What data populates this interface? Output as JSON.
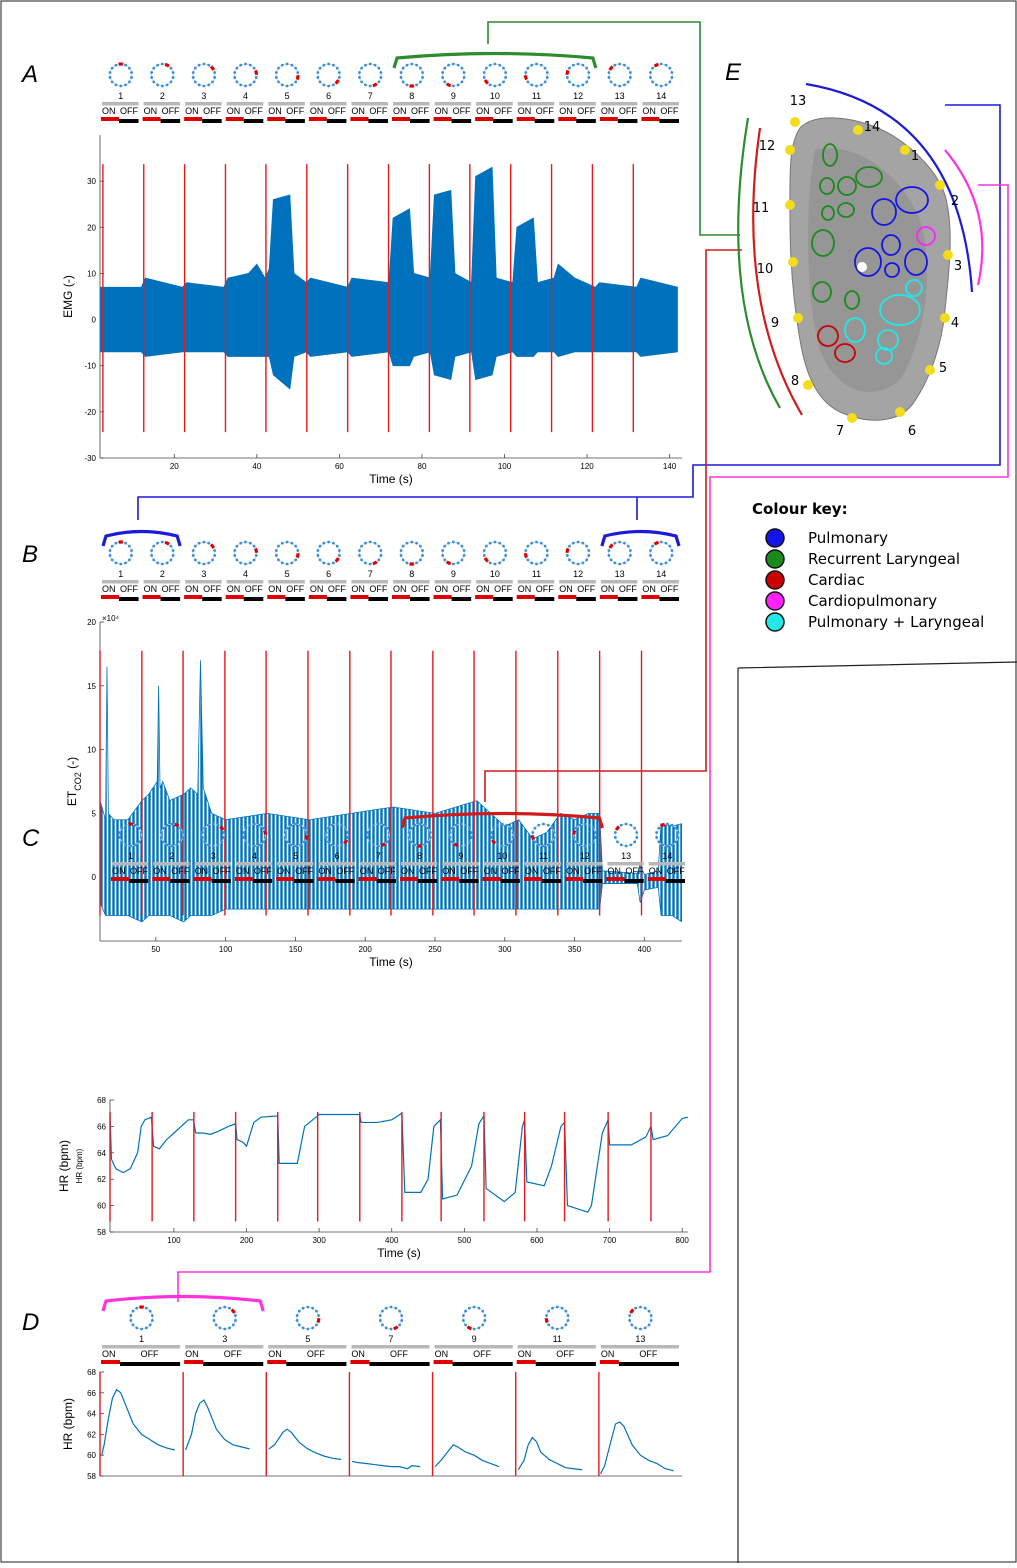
{
  "chart_data": [
    {
      "type": "area",
      "panel": "A",
      "electrodes": [
        "1",
        "2",
        "3",
        "4",
        "5",
        "6",
        "7",
        "8",
        "9",
        "10",
        "11",
        "12",
        "13",
        "14"
      ],
      "on_label": "ON",
      "off_label": "OFF",
      "stim_color": "#e41a1c",
      "stim_onsets": [
        2.7,
        12.6,
        22.5,
        32.4,
        42.2,
        52.1,
        62,
        71.9,
        81.8,
        91.6,
        101.5,
        111.4,
        121.3,
        131.2
      ],
      "x": [
        2,
        12,
        13,
        22,
        23,
        32,
        33,
        38,
        40,
        42,
        43,
        44,
        48,
        49,
        52,
        53,
        62,
        63,
        72,
        73,
        77,
        78,
        82,
        83,
        87,
        88,
        92,
        93,
        97,
        98,
        102,
        103,
        107,
        108,
        112,
        113,
        117,
        122,
        123,
        132,
        133,
        142
      ],
      "series": [
        {
          "color": "#0072bd",
          "values": [
            7,
            7,
            9,
            7,
            8,
            7,
            9,
            10,
            12,
            9,
            11,
            26,
            27,
            10,
            8,
            9,
            7,
            9,
            8,
            22,
            24,
            10,
            9,
            27,
            28,
            10,
            8,
            31,
            33,
            9,
            8,
            20,
            22,
            8,
            9,
            12,
            9,
            7,
            8,
            7,
            9,
            7
          ]
        },
        {
          "color": "#0072bd",
          "values": [
            -7,
            -7,
            -8,
            -7,
            -7,
            -7,
            -8,
            -8,
            -8,
            -8,
            -8,
            -12,
            -15,
            -8,
            -7,
            -8,
            -7,
            -8,
            -7,
            -10,
            -10,
            -8,
            -7,
            -12,
            -13,
            -8,
            -7,
            -13,
            -12,
            -8,
            -7,
            -8,
            -8,
            -7,
            -7,
            -8,
            -7,
            -7,
            -7,
            -7,
            -8,
            -7
          ]
        }
      ],
      "xlim": [
        2,
        143
      ],
      "ylim": [
        -30,
        40
      ],
      "xticks": [
        20,
        40,
        60,
        80,
        100,
        120,
        140
      ],
      "yticks": [
        -30,
        -20,
        -10,
        0,
        10,
        20,
        30
      ],
      "xlabel": "Time (s)",
      "ylabel": "EMG (-)"
    },
    {
      "type": "area",
      "panel": "B",
      "electrodes": [
        "1",
        "2",
        "3",
        "4",
        "5",
        "6",
        "7",
        "8",
        "9",
        "10",
        "11",
        "12",
        "13",
        "14"
      ],
      "on_label": "ON",
      "off_label": "OFF",
      "stim_color": "#e41a1c",
      "stim_onsets": [
        10,
        40,
        69.5,
        99.5,
        129,
        159,
        189,
        218.5,
        248.5,
        278,
        308,
        338,
        368,
        398
      ],
      "x": [
        10,
        14,
        15,
        16,
        20,
        30,
        40,
        45,
        51,
        52,
        53,
        55,
        60,
        70,
        75,
        80,
        82,
        84,
        90,
        100,
        130,
        160,
        190,
        220,
        250,
        280,
        300,
        310,
        320,
        330,
        340,
        350,
        360,
        368,
        370,
        395,
        397,
        400,
        410,
        412,
        420,
        427
      ],
      "series": [
        {
          "color": "#0072bd",
          "values": [
            6,
            4.5,
            16.5,
            5,
            4.5,
            4.5,
            6,
            6.5,
            7.5,
            15,
            7,
            7.5,
            6,
            6.5,
            7,
            6.5,
            17,
            7,
            5,
            4.5,
            5,
            4.5,
            5,
            5.5,
            5,
            6,
            4,
            4.5,
            3,
            3.5,
            5,
            4.5,
            5,
            5,
            0.5,
            0.3,
            1,
            0.2,
            0.5,
            4.2,
            4,
            4.2
          ]
        },
        {
          "color": "#0072bd",
          "values": [
            -2,
            -3,
            -3,
            -3,
            -3,
            -3,
            -3.5,
            -3,
            -3,
            -3,
            -3,
            -3,
            -3,
            -3.5,
            -3,
            -3,
            -3,
            -3,
            -3,
            -2.5,
            -2.5,
            -2.5,
            -2.5,
            -2.5,
            -2.5,
            -2.5,
            -2.5,
            -2.5,
            -2.5,
            -2.5,
            -2.5,
            -2.5,
            -2.5,
            -2.5,
            -0.5,
            -0.5,
            -2,
            -1,
            -0.8,
            -3,
            -3,
            -3.5
          ]
        }
      ],
      "xlim": [
        10,
        427
      ],
      "ylim": [
        -5,
        20
      ],
      "xticks": [
        50,
        100,
        150,
        200,
        250,
        300,
        350,
        400
      ],
      "yticks": [
        0,
        5,
        10,
        15,
        20
      ],
      "y_scale_label": "×10⁴",
      "xlabel": "Time (s)",
      "ylabel": "ET",
      "ylabel_sub": "CO2",
      "ylabel_suffix": " (-)"
    },
    {
      "type": "line",
      "panel": "C",
      "electrodes": [
        "1",
        "2",
        "3",
        "4",
        "5",
        "6",
        "7",
        "8",
        "9",
        "10",
        "11",
        "12",
        "13",
        "14"
      ],
      "on_label": "ON",
      "off_label": "OFF",
      "stim_color": "#e41a1c",
      "stim_onsets": [
        12,
        70,
        127.5,
        185,
        243,
        298,
        356,
        414,
        468,
        527,
        583,
        638,
        698,
        757
      ],
      "x": [
        12,
        14,
        20,
        30,
        40,
        50,
        55,
        60,
        69,
        72,
        80,
        90,
        100,
        110,
        120,
        127,
        130,
        140,
        150,
        160,
        175,
        185,
        187,
        195,
        200,
        210,
        220,
        243,
        245,
        270,
        280,
        298,
        300,
        356,
        358,
        380,
        400,
        414,
        418,
        440,
        450,
        458,
        467,
        470,
        490,
        510,
        520,
        527,
        530,
        555,
        570,
        580,
        583,
        586,
        610,
        620,
        633,
        638,
        642,
        670,
        675,
        690,
        698,
        700,
        730,
        750,
        757,
        760,
        780,
        800,
        808
      ],
      "series": [
        {
          "color": "#0072bd",
          "values": [
            67,
            63.5,
            62.8,
            62.5,
            62.8,
            64,
            66,
            66.5,
            66.7,
            64.5,
            64.3,
            65,
            65.5,
            66,
            66.5,
            66.5,
            65.5,
            65.5,
            65.4,
            65.6,
            66,
            66.2,
            65,
            64.8,
            64.5,
            66.3,
            66.7,
            66.8,
            63.2,
            63.2,
            66,
            66.8,
            66.9,
            66.9,
            66.3,
            66.3,
            66.5,
            67,
            61,
            61,
            62,
            66,
            66.5,
            60.5,
            60.8,
            63,
            66.2,
            66.8,
            61.3,
            60.3,
            61,
            66,
            66.5,
            61.8,
            61.5,
            63,
            66,
            66.3,
            60,
            59.5,
            60,
            65.5,
            66.5,
            64.6,
            64.6,
            65.2,
            66,
            65,
            65.3,
            66.6,
            66.7
          ]
        }
      ],
      "xlim": [
        12,
        808
      ],
      "ylim": [
        58,
        68
      ],
      "xticks": [
        100,
        200,
        300,
        400,
        500,
        600,
        700,
        800
      ],
      "yticks": [
        58,
        60,
        62,
        64,
        66,
        68
      ],
      "xlabel": "Time (s)",
      "ylabel": "HR (bpm)"
    },
    {
      "type": "line",
      "panel": "D",
      "electrodes": [
        "1",
        "3",
        "5",
        "7",
        "9",
        "11",
        "13"
      ],
      "on_label": "ON",
      "off_label": "OFF",
      "stim_color": "#e41a1c",
      "stim_onsets": [
        0,
        10,
        20,
        30,
        40,
        50,
        60
      ],
      "x": [
        0.2,
        0.5,
        1,
        1.5,
        2,
        2.5,
        3,
        4,
        5,
        6,
        7,
        8,
        9,
        null,
        10.3,
        11,
        11.5,
        12,
        12.5,
        13,
        14,
        15,
        16,
        17,
        18,
        null,
        20.3,
        21,
        22,
        22.5,
        23,
        24,
        25,
        26,
        27,
        28,
        29,
        null,
        30.3,
        31,
        32,
        33,
        34,
        35,
        36,
        37,
        37.5,
        38.5,
        null,
        40.3,
        41,
        42,
        42.5,
        43,
        44,
        45,
        46,
        47,
        48,
        null,
        50.3,
        51,
        51.5,
        52,
        52.5,
        53,
        54,
        55,
        56,
        57,
        58,
        null,
        60.2,
        60.7,
        61.5,
        62,
        62.5,
        63,
        64,
        65,
        66,
        67,
        68,
        69
      ],
      "series": [
        {
          "color": "#0072bd",
          "values": [
            60,
            61,
            63.5,
            65.5,
            66.3,
            66,
            65,
            63,
            62,
            61.5,
            61,
            60.7,
            60.5,
            null,
            60.5,
            62,
            64,
            65,
            65.3,
            64.5,
            62.5,
            61.5,
            61,
            60.8,
            60.6,
            null,
            60.6,
            61,
            62.2,
            62.5,
            62.2,
            61.2,
            60.6,
            60.2,
            59.9,
            59.7,
            59.6,
            null,
            59.4,
            59.3,
            59.2,
            59.1,
            59,
            58.9,
            58.9,
            58.7,
            59,
            58.9,
            null,
            58.9,
            59.5,
            60.5,
            61,
            60.8,
            60.3,
            60,
            59.5,
            59.2,
            58.9,
            null,
            58.6,
            59.5,
            61,
            61.7,
            61.3,
            60.3,
            59.6,
            59.2,
            58.8,
            58.7,
            58.6,
            null,
            58.2,
            59,
            61.5,
            63,
            63.2,
            62.8,
            61,
            60,
            59.5,
            59.2,
            58.7,
            58.5
          ]
        }
      ],
      "xlim": [
        0,
        70
      ],
      "ylim": [
        58,
        68
      ],
      "yticks": [
        58,
        60,
        62,
        64,
        66,
        68
      ],
      "ylabel": "HR (bpm)"
    }
  ],
  "panel_e": {
    "letter": "E",
    "electrode_labels": [
      "1",
      "2",
      "3",
      "4",
      "5",
      "6",
      "7",
      "8",
      "9",
      "10",
      "11",
      "12",
      "13",
      "14"
    ],
    "colour_key": {
      "title": "Colour key:",
      "items": [
        {
          "label": "Pulmonary",
          "color": "#1414e6"
        },
        {
          "label": "Recurrent Laryngeal",
          "color": "#1a8a1a"
        },
        {
          "label": "Cardiac",
          "color": "#cc0000"
        },
        {
          "label": "Cardiopulmonary",
          "color": "#ff22ff"
        },
        {
          "label": "Pulmonary + Laryngeal",
          "color": "#22e8e8"
        }
      ]
    }
  }
}
